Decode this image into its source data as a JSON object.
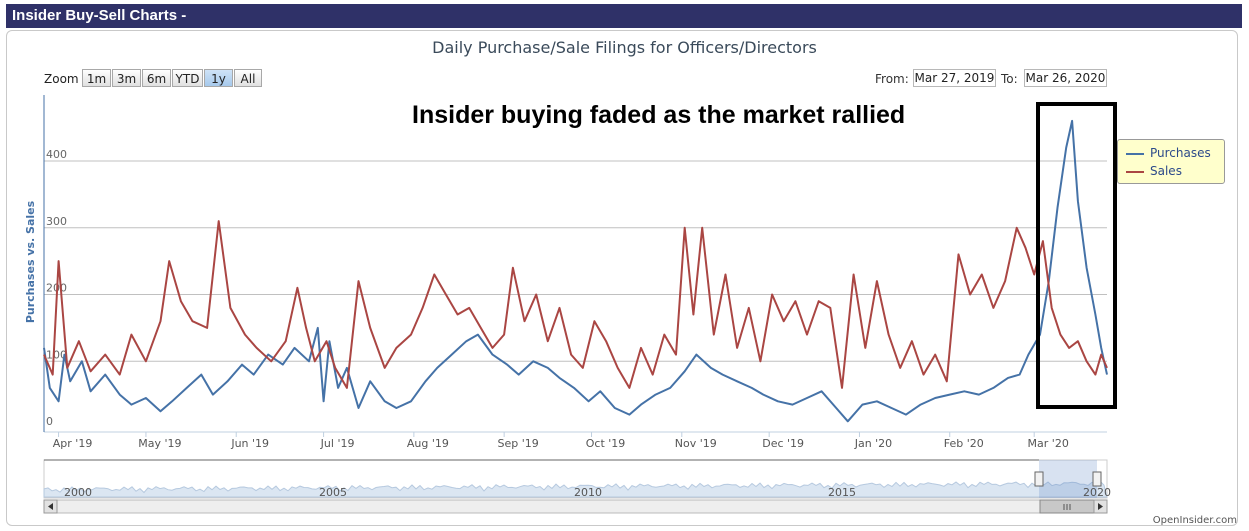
{
  "header": {
    "title": "Insider Buy-Sell Charts -"
  },
  "toolbar": {
    "zoom_label": "Zoom",
    "buttons": [
      "1m",
      "3m",
      "6m",
      "YTD",
      "1y",
      "All"
    ],
    "active": "1y",
    "from_label": "From:",
    "from_value": "Mar 27, 2019",
    "to_label": "To:",
    "to_value": "Mar 26, 2020"
  },
  "annotation": "Insider buying faded as the market rallied",
  "footer": "OpenInsider.com",
  "colors": {
    "purchases": "#4572a7",
    "sales": "#aa4643",
    "highlight_box": "#000000"
  },
  "chart_data": {
    "type": "line",
    "title": "Daily Purchase/Sale Filings for Officers/Directors",
    "xlabel": "",
    "ylabel": "Purchases vs. Sales",
    "ylim": [
      0,
      500
    ],
    "x_range": [
      "2019-03-27",
      "2020-03-26"
    ],
    "grid": true,
    "legend": "top-right",
    "x_ticks": [
      "Apr '19",
      "May '19",
      "Jun '19",
      "Jul '19",
      "Aug '19",
      "Sep '19",
      "Oct '19",
      "Nov '19",
      "Dec '19",
      "Jan '20",
      "Feb '20",
      "Mar '20"
    ],
    "y_ticks": [
      0,
      100,
      200,
      300,
      400
    ],
    "series": [
      {
        "name": "Purchases",
        "values": [
          [
            "2019-03-27",
            120
          ],
          [
            "2019-03-29",
            60
          ],
          [
            "2019-04-01",
            40
          ],
          [
            "2019-04-03",
            110
          ],
          [
            "2019-04-05",
            70
          ],
          [
            "2019-04-09",
            100
          ],
          [
            "2019-04-12",
            55
          ],
          [
            "2019-04-17",
            80
          ],
          [
            "2019-04-22",
            50
          ],
          [
            "2019-04-26",
            35
          ],
          [
            "2019-05-01",
            45
          ],
          [
            "2019-05-06",
            25
          ],
          [
            "2019-05-10",
            40
          ],
          [
            "2019-05-15",
            60
          ],
          [
            "2019-05-20",
            80
          ],
          [
            "2019-05-24",
            50
          ],
          [
            "2019-05-29",
            70
          ],
          [
            "2019-06-03",
            95
          ],
          [
            "2019-06-07",
            80
          ],
          [
            "2019-06-12",
            110
          ],
          [
            "2019-06-17",
            95
          ],
          [
            "2019-06-21",
            120
          ],
          [
            "2019-06-26",
            100
          ],
          [
            "2019-06-29",
            150
          ],
          [
            "2019-07-01",
            40
          ],
          [
            "2019-07-03",
            130
          ],
          [
            "2019-07-06",
            60
          ],
          [
            "2019-07-09",
            90
          ],
          [
            "2019-07-13",
            30
          ],
          [
            "2019-07-17",
            70
          ],
          [
            "2019-07-22",
            40
          ],
          [
            "2019-07-26",
            30
          ],
          [
            "2019-07-31",
            40
          ],
          [
            "2019-08-05",
            70
          ],
          [
            "2019-08-09",
            90
          ],
          [
            "2019-08-14",
            110
          ],
          [
            "2019-08-19",
            130
          ],
          [
            "2019-08-23",
            140
          ],
          [
            "2019-08-28",
            110
          ],
          [
            "2019-09-02",
            95
          ],
          [
            "2019-09-06",
            80
          ],
          [
            "2019-09-11",
            100
          ],
          [
            "2019-09-16",
            90
          ],
          [
            "2019-09-20",
            75
          ],
          [
            "2019-09-25",
            60
          ],
          [
            "2019-09-30",
            40
          ],
          [
            "2019-10-04",
            55
          ],
          [
            "2019-10-09",
            30
          ],
          [
            "2019-10-14",
            20
          ],
          [
            "2019-10-18",
            35
          ],
          [
            "2019-10-23",
            50
          ],
          [
            "2019-10-28",
            60
          ],
          [
            "2019-11-02",
            85
          ],
          [
            "2019-11-06",
            110
          ],
          [
            "2019-11-11",
            90
          ],
          [
            "2019-11-15",
            80
          ],
          [
            "2019-11-20",
            70
          ],
          [
            "2019-11-25",
            60
          ],
          [
            "2019-11-29",
            50
          ],
          [
            "2019-12-04",
            40
          ],
          [
            "2019-12-09",
            35
          ],
          [
            "2019-12-14",
            45
          ],
          [
            "2019-12-19",
            55
          ],
          [
            "2019-12-24",
            30
          ],
          [
            "2019-12-28",
            10
          ],
          [
            "2020-01-02",
            35
          ],
          [
            "2020-01-07",
            40
          ],
          [
            "2020-01-12",
            30
          ],
          [
            "2020-01-17",
            20
          ],
          [
            "2020-01-22",
            35
          ],
          [
            "2020-01-27",
            45
          ],
          [
            "2020-02-01",
            50
          ],
          [
            "2020-02-06",
            55
          ],
          [
            "2020-02-11",
            50
          ],
          [
            "2020-02-16",
            60
          ],
          [
            "2020-02-21",
            75
          ],
          [
            "2020-02-25",
            80
          ],
          [
            "2020-02-28",
            110
          ],
          [
            "2020-03-03",
            140
          ],
          [
            "2020-03-06",
            220
          ],
          [
            "2020-03-09",
            330
          ],
          [
            "2020-03-12",
            420
          ],
          [
            "2020-03-14",
            460
          ],
          [
            "2020-03-16",
            340
          ],
          [
            "2020-03-19",
            240
          ],
          [
            "2020-03-22",
            170
          ],
          [
            "2020-03-24",
            120
          ],
          [
            "2020-03-26",
            80
          ]
        ]
      },
      {
        "name": "Sales",
        "values": [
          [
            "2019-03-27",
            110
          ],
          [
            "2019-03-30",
            80
          ],
          [
            "2019-04-01",
            250
          ],
          [
            "2019-04-04",
            90
          ],
          [
            "2019-04-08",
            130
          ],
          [
            "2019-04-12",
            85
          ],
          [
            "2019-04-17",
            110
          ],
          [
            "2019-04-22",
            80
          ],
          [
            "2019-04-26",
            140
          ],
          [
            "2019-05-01",
            100
          ],
          [
            "2019-05-06",
            160
          ],
          [
            "2019-05-09",
            250
          ],
          [
            "2019-05-13",
            190
          ],
          [
            "2019-05-17",
            160
          ],
          [
            "2019-05-22",
            150
          ],
          [
            "2019-05-26",
            310
          ],
          [
            "2019-05-30",
            180
          ],
          [
            "2019-06-04",
            140
          ],
          [
            "2019-06-08",
            120
          ],
          [
            "2019-06-13",
            100
          ],
          [
            "2019-06-18",
            130
          ],
          [
            "2019-06-22",
            210
          ],
          [
            "2019-06-25",
            150
          ],
          [
            "2019-06-28",
            100
          ],
          [
            "2019-07-02",
            130
          ],
          [
            "2019-07-05",
            90
          ],
          [
            "2019-07-09",
            60
          ],
          [
            "2019-07-13",
            220
          ],
          [
            "2019-07-17",
            150
          ],
          [
            "2019-07-22",
            90
          ],
          [
            "2019-07-26",
            120
          ],
          [
            "2019-07-31",
            140
          ],
          [
            "2019-08-04",
            180
          ],
          [
            "2019-08-08",
            230
          ],
          [
            "2019-08-12",
            200
          ],
          [
            "2019-08-16",
            170
          ],
          [
            "2019-08-20",
            180
          ],
          [
            "2019-08-24",
            150
          ],
          [
            "2019-08-28",
            120
          ],
          [
            "2019-09-01",
            140
          ],
          [
            "2019-09-04",
            240
          ],
          [
            "2019-09-08",
            160
          ],
          [
            "2019-09-12",
            200
          ],
          [
            "2019-09-16",
            130
          ],
          [
            "2019-09-20",
            180
          ],
          [
            "2019-09-24",
            110
          ],
          [
            "2019-09-28",
            90
          ],
          [
            "2019-10-02",
            160
          ],
          [
            "2019-10-06",
            130
          ],
          [
            "2019-10-10",
            90
          ],
          [
            "2019-10-14",
            60
          ],
          [
            "2019-10-18",
            120
          ],
          [
            "2019-10-22",
            80
          ],
          [
            "2019-10-26",
            140
          ],
          [
            "2019-10-30",
            110
          ],
          [
            "2019-11-02",
            300
          ],
          [
            "2019-11-05",
            170
          ],
          [
            "2019-11-08",
            300
          ],
          [
            "2019-11-12",
            140
          ],
          [
            "2019-11-16",
            230
          ],
          [
            "2019-11-20",
            120
          ],
          [
            "2019-11-24",
            180
          ],
          [
            "2019-11-28",
            100
          ],
          [
            "2019-12-02",
            200
          ],
          [
            "2019-12-06",
            160
          ],
          [
            "2019-12-10",
            190
          ],
          [
            "2019-12-14",
            140
          ],
          [
            "2019-12-18",
            190
          ],
          [
            "2019-12-22",
            180
          ],
          [
            "2019-12-26",
            60
          ],
          [
            "2019-12-30",
            230
          ],
          [
            "2020-01-03",
            120
          ],
          [
            "2020-01-07",
            220
          ],
          [
            "2020-01-11",
            140
          ],
          [
            "2020-01-15",
            90
          ],
          [
            "2020-01-19",
            130
          ],
          [
            "2020-01-23",
            80
          ],
          [
            "2020-01-27",
            110
          ],
          [
            "2020-01-31",
            70
          ],
          [
            "2020-02-04",
            260
          ],
          [
            "2020-02-08",
            200
          ],
          [
            "2020-02-12",
            230
          ],
          [
            "2020-02-16",
            180
          ],
          [
            "2020-02-20",
            220
          ],
          [
            "2020-02-24",
            300
          ],
          [
            "2020-02-27",
            270
          ],
          [
            "2020-03-01",
            230
          ],
          [
            "2020-03-04",
            280
          ],
          [
            "2020-03-07",
            180
          ],
          [
            "2020-03-10",
            140
          ],
          [
            "2020-03-13",
            120
          ],
          [
            "2020-03-16",
            130
          ],
          [
            "2020-03-19",
            100
          ],
          [
            "2020-03-22",
            80
          ],
          [
            "2020-03-24",
            110
          ],
          [
            "2020-03-26",
            90
          ]
        ]
      }
    ],
    "navigator": {
      "labels": [
        "2000",
        "2005",
        "2010",
        "2015",
        "2020"
      ]
    }
  }
}
